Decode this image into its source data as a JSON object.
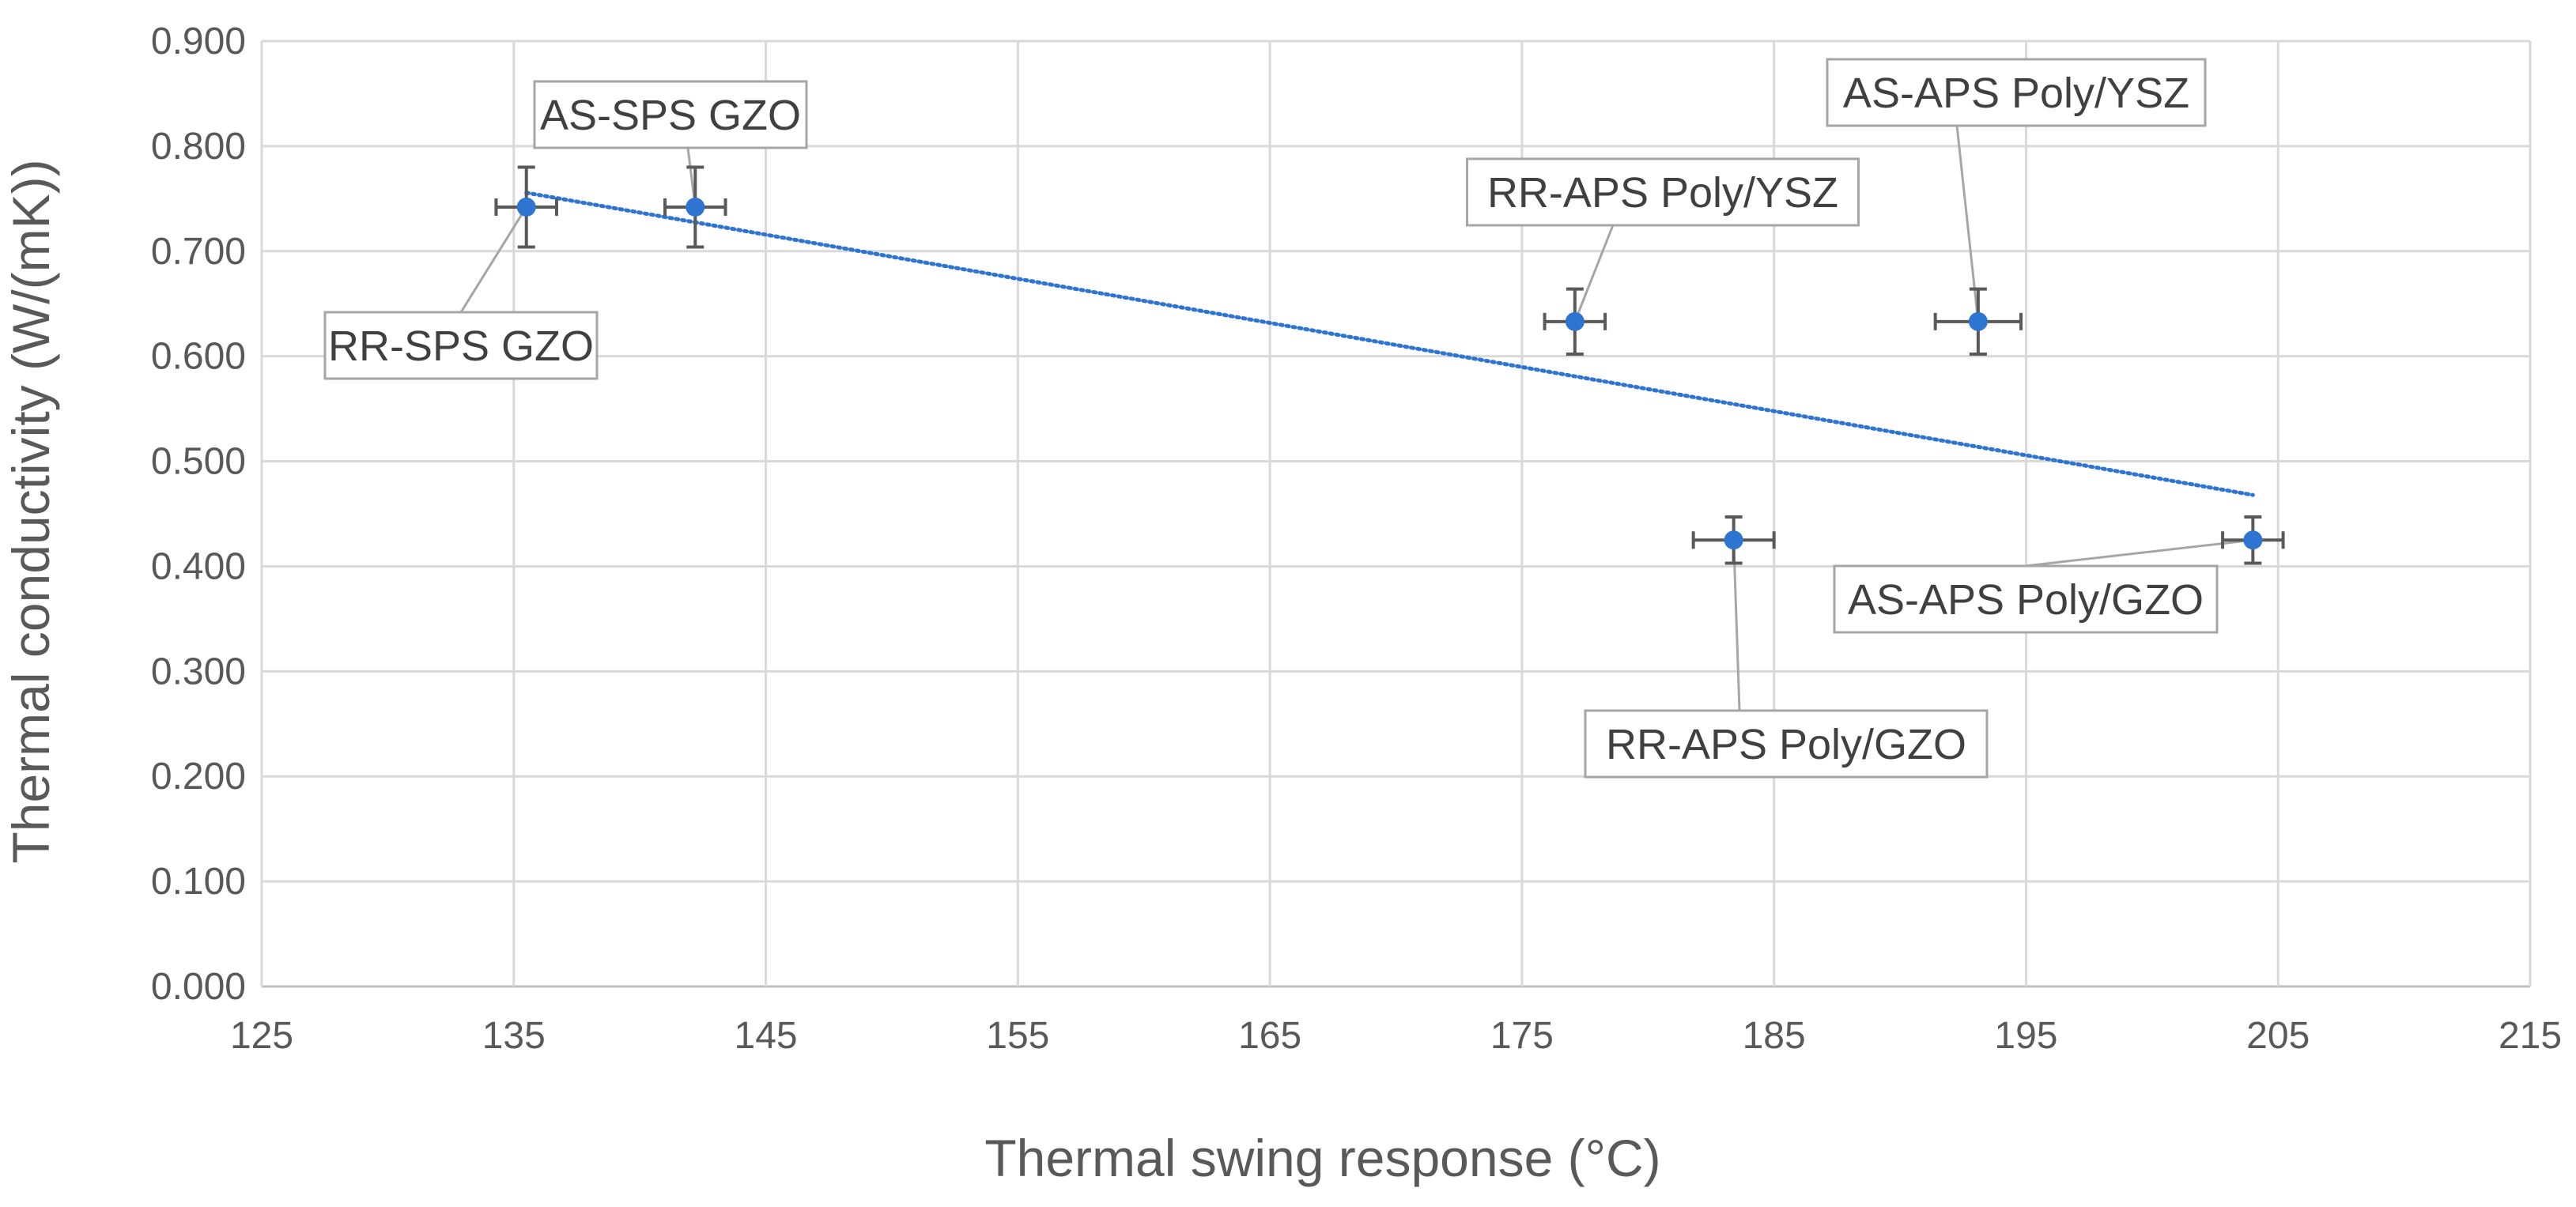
{
  "chart_data": {
    "type": "scatter",
    "title": "",
    "xlabel": "Thermal swing response (°C)",
    "ylabel": "Thermal conductivity (W/(mK))",
    "xlim": [
      125,
      215
    ],
    "ylim": [
      0,
      0.9
    ],
    "x_ticks": [
      "125",
      "135",
      "145",
      "155",
      "165",
      "175",
      "185",
      "195",
      "205",
      "215"
    ],
    "y_ticks": [
      "0.000",
      "0.100",
      "0.200",
      "0.300",
      "0.400",
      "0.500",
      "0.600",
      "0.700",
      "0.800",
      "0.900"
    ],
    "grid": true,
    "legend": "none",
    "marker_color": "#2E75D1",
    "trendline": {
      "type": "linear",
      "style": "dotted",
      "color": "#2E75D1",
      "x_range": [
        135.5,
        204
      ]
    },
    "points": [
      {
        "label": "RR-SPS GZO",
        "x": 135.5,
        "y": 0.742,
        "x_err": 1.2,
        "y_err": 0.038
      },
      {
        "label": "AS-SPS GZO",
        "x": 142.2,
        "y": 0.742,
        "x_err": 1.2,
        "y_err": 0.038
      },
      {
        "label": "RR-APS Poly/YSZ",
        "x": 177.1,
        "y": 0.633,
        "x_err": 1.2,
        "y_err": 0.031
      },
      {
        "label": "AS-APS Poly/YSZ",
        "x": 193.1,
        "y": 0.633,
        "x_err": 1.7,
        "y_err": 0.031
      },
      {
        "label": "RR-APS Poly/GZO",
        "x": 183.4,
        "y": 0.425,
        "x_err": 1.6,
        "y_err": 0.022
      },
      {
        "label": "AS-APS Poly/GZO",
        "x": 204.0,
        "y": 0.425,
        "x_err": 1.2,
        "y_err": 0.022
      }
    ]
  }
}
